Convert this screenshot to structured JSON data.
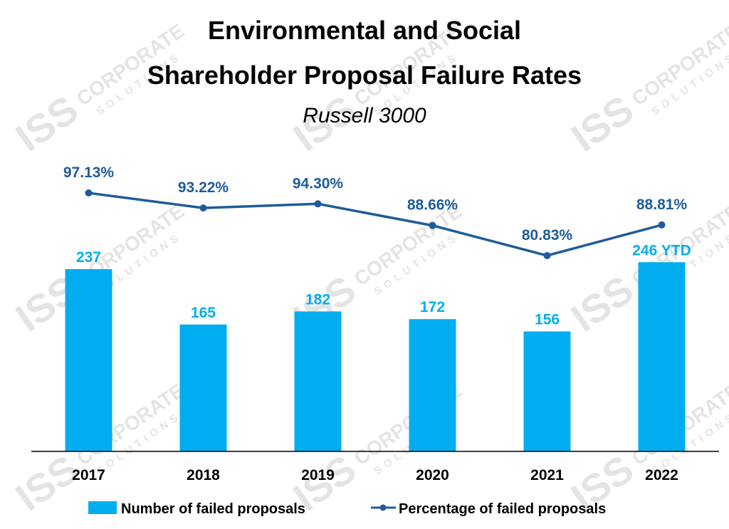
{
  "chart_data": {
    "type": "bar",
    "title_lines": [
      "Environmental and Social",
      "Shareholder Proposal Failure Rates"
    ],
    "subtitle": "Russell 3000",
    "categories": [
      "2017",
      "2018",
      "2019",
      "2020",
      "2021",
      "2022"
    ],
    "series": [
      {
        "name": "Number of failed proposals",
        "type": "bar",
        "values": [
          237,
          165,
          182,
          172,
          156,
          246
        ],
        "labels": [
          "237",
          "165",
          "182",
          "172",
          "156",
          "246 YTD"
        ],
        "color": "#00AEEF"
      },
      {
        "name": "Percentage of failed proposals",
        "type": "line",
        "values": [
          97.13,
          93.22,
          94.3,
          88.66,
          80.83,
          88.81
        ],
        "labels": [
          "97.13%",
          "93.22%",
          "94.30%",
          "88.66%",
          "80.83%",
          "88.81%"
        ],
        "color": "#1F5C99"
      }
    ],
    "bar_axis": {
      "ylim": [
        0,
        300
      ]
    },
    "line_axis": {
      "ylim": [
        0,
        105
      ]
    },
    "legend": "bottom",
    "grid": false
  },
  "watermark": {
    "brand": "ISS",
    "line1": "CORPORATE",
    "line2": "SOLUTIONS"
  }
}
